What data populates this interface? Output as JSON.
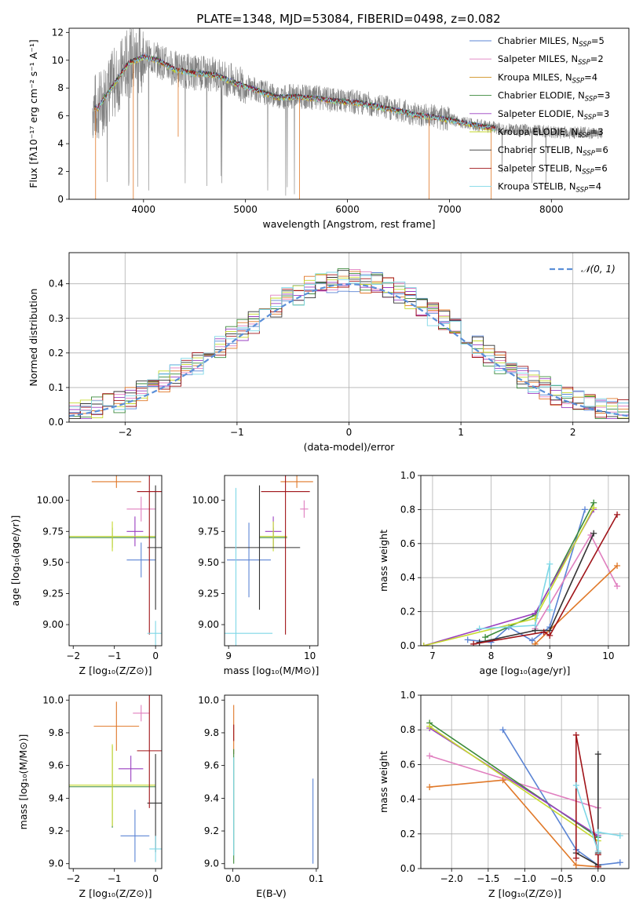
{
  "figure": {
    "title": "PLATE=1348, MJD=53084, FIBERID=0498, z=0.082"
  },
  "chart_data": [
    {
      "id": "spectrum",
      "type": "line",
      "xlabel": "wavelength [Angstrom, rest frame]",
      "ylabel": "Flux [fλ10⁻¹⁷ erg cm⁻² s⁻¹ A⁻¹]",
      "xlim": [
        3270,
        8760
      ],
      "ylim": [
        0,
        12.3
      ],
      "xticks": [
        4000,
        5000,
        6000,
        7000,
        8000
      ],
      "yticks": [
        0,
        2,
        4,
        6,
        8,
        10,
        12
      ],
      "legend_position": "top-right",
      "data_color": "#808080",
      "data": {
        "x": [
          3550,
          3700,
          3850,
          4000,
          4150,
          4300,
          4500,
          4700,
          4900,
          5100,
          5300,
          5500,
          5700,
          5900,
          6100,
          6300,
          6500,
          6700,
          6900,
          7100,
          7300,
          7500,
          7700,
          7900,
          8100,
          8300,
          8500
        ],
        "y": [
          6.6,
          8.2,
          9.8,
          10.3,
          10.0,
          9.4,
          9.1,
          9.0,
          8.4,
          7.9,
          7.4,
          7.4,
          7.3,
          7.1,
          7.0,
          6.7,
          6.4,
          6.1,
          5.9,
          5.6,
          5.3,
          5.1,
          5.0,
          4.9,
          4.8,
          4.8,
          4.7
        ]
      },
      "series": [
        {
          "name": "Chabrier MILES, N",
          "sub": "SSP",
          "suffix": "=5",
          "color": "#5b84d4"
        },
        {
          "name": "Salpeter MILES, N",
          "sub": "SSP",
          "suffix": "=2",
          "color": "#e07fbf"
        },
        {
          "name": "Kroupa MILES, N",
          "sub": "SSP",
          "suffix": "=4",
          "color": "#d1901f"
        },
        {
          "name": "Chabrier ELODIE, N",
          "sub": "SSP",
          "suffix": "=3",
          "color": "#3b8a3b"
        },
        {
          "name": "Salpeter ELODIE, N",
          "sub": "SSP",
          "suffix": "=3",
          "color": "#9a3fc0"
        },
        {
          "name": "Kroupa ELODIE, N",
          "sub": "SSP",
          "suffix": "=3",
          "color": "#c6d92e"
        },
        {
          "name": "Chabrier STELIB, N",
          "sub": "SSP",
          "suffix": "=6",
          "color": "#333333"
        },
        {
          "name": "Salpeter STELIB, N",
          "sub": "SSP",
          "suffix": "=6",
          "color": "#a01419"
        },
        {
          "name": "Kroupa STELIB, N",
          "sub": "SSP",
          "suffix": "=4",
          "color": "#7fd7e6"
        }
      ]
    },
    {
      "id": "residuals",
      "type": "histogram",
      "xlabel": "(data-model)/error",
      "ylabel": "Normed distribution",
      "xlim": [
        -2.5,
        2.5
      ],
      "ylim": [
        0,
        0.49
      ],
      "xticks": [
        -2,
        -1,
        0,
        1,
        2
      ],
      "yticks": [
        0.0,
        0.1,
        0.2,
        0.3,
        0.4
      ],
      "grid": true,
      "legend": "𝒩(0, 1)",
      "legend_position": "top-right",
      "gaussian_color": "#5b8fd8",
      "bin_width": 0.1,
      "bins_start": -2.5,
      "hist_colors": [
        "#5b84d4",
        "#e07fbf",
        "#e07828",
        "#3b8a3b",
        "#9a3fc0",
        "#c6d92e",
        "#333333",
        "#a01419",
        "#7fd7e6"
      ]
    },
    {
      "id": "age_vs_Z",
      "type": "errorbar",
      "xlabel": "Z [log₁₀(Z/Z⊙)]",
      "ylabel": "age  [log₁₀(age/yr)]",
      "xlim": [
        -2.1,
        0.15
      ],
      "ylim": [
        8.83,
        10.2
      ],
      "xticks": [
        -2,
        -1,
        0
      ],
      "yticks": [
        9.0,
        9.25,
        9.5,
        9.75,
        10.0
      ],
      "points": [
        {
          "x": -0.35,
          "xerr": 0.35,
          "y": 9.52,
          "yerr": 0.14,
          "color": "#5b84d4"
        },
        {
          "x": -0.35,
          "xerr": 0.35,
          "y": 9.93,
          "yerr": 0.1,
          "color": "#e07fbf"
        },
        {
          "x": -0.95,
          "xerr": 0.6,
          "y": 10.15,
          "yerr": 0.05,
          "color": "#e07828"
        },
        {
          "x": -1.05,
          "xerr": 1.05,
          "y": 9.7,
          "yerr": 0.08,
          "color": "#3b8a3b"
        },
        {
          "x": -0.5,
          "xerr": 0.2,
          "y": 9.75,
          "yerr": 0.12,
          "color": "#9a3fc0"
        },
        {
          "x": -1.05,
          "xerr": 1.05,
          "y": 9.71,
          "yerr": 0.12,
          "color": "#c6d92e"
        },
        {
          "x": 0.0,
          "xerr": 0.2,
          "y": 9.62,
          "yerr": 0.5,
          "color": "#333333"
        },
        {
          "x": -0.15,
          "xerr": 0.3,
          "y": 10.07,
          "yerr": 1.15,
          "color": "#a01419"
        },
        {
          "x": 0.0,
          "xerr": 0.2,
          "y": 8.93,
          "yerr": 0.1,
          "color": "#7fd7e6"
        }
      ]
    },
    {
      "id": "age_vs_mass",
      "type": "errorbar",
      "xlabel": "mass [log₁₀(M/M⊙)]",
      "ylabel": "",
      "xlim": [
        8.95,
        10.1
      ],
      "ylim": [
        8.83,
        10.2
      ],
      "xticks": [
        9,
        10
      ],
      "yticks": [
        9.0,
        9.25,
        9.5,
        9.75,
        10.0
      ],
      "points": [
        {
          "x": 9.25,
          "xerr": 0.27,
          "y": 9.52,
          "yerr": 0.3,
          "color": "#5b84d4"
        },
        {
          "x": 9.93,
          "xerr": 0.05,
          "y": 9.93,
          "yerr": 0.07,
          "color": "#e07fbf"
        },
        {
          "x": 9.84,
          "xerr": 0.2,
          "y": 10.15,
          "yerr": 0.05,
          "color": "#e07828"
        },
        {
          "x": 9.55,
          "xerr": 0.17,
          "y": 9.7,
          "yerr": 0.08,
          "color": "#3b8a3b"
        },
        {
          "x": 9.55,
          "xerr": 0.1,
          "y": 9.75,
          "yerr": 0.12,
          "color": "#9a3fc0"
        },
        {
          "x": 9.55,
          "xerr": 0.17,
          "y": 9.71,
          "yerr": 0.12,
          "color": "#c6d92e"
        },
        {
          "x": 9.38,
          "xerr": 0.5,
          "y": 9.62,
          "yerr": 0.5,
          "color": "#333333"
        },
        {
          "x": 9.7,
          "xerr": 0.3,
          "y": 10.07,
          "yerr": 1.15,
          "color": "#a01419"
        },
        {
          "x": 9.09,
          "xerr": 0.45,
          "y": 8.93,
          "yerr": 1.17,
          "color": "#7fd7e6"
        }
      ]
    },
    {
      "id": "weight_vs_age",
      "type": "line",
      "xlabel": "age  [log₁₀(age/yr)]",
      "ylabel": "mass weight",
      "xlim": [
        6.8,
        10.35
      ],
      "ylim": [
        0,
        1.0
      ],
      "xticks": [
        7,
        8,
        9,
        10
      ],
      "yticks": [
        0.0,
        0.2,
        0.4,
        0.6,
        0.8,
        1.0
      ],
      "grid": true,
      "series": [
        {
          "color": "#5b84d4",
          "x": [
            7.6,
            8.0,
            8.3,
            8.7,
            9.0,
            9.6
          ],
          "y": [
            0.035,
            0.02,
            0.11,
            0.03,
            0.11,
            0.8
          ]
        },
        {
          "color": "#e07fbf",
          "x": [
            8.75,
            9.7,
            10.15
          ],
          "y": [
            0.1,
            0.65,
            0.35
          ]
        },
        {
          "color": "#e07828",
          "x": [
            8.75,
            10.15
          ],
          "y": [
            0.01,
            0.47
          ]
        },
        {
          "color": "#3b8a3b",
          "x": [
            7.9,
            8.75,
            9.75
          ],
          "y": [
            0.05,
            0.18,
            0.84
          ]
        },
        {
          "color": "#9a3fc0",
          "x": [
            6.85,
            8.75,
            9.75
          ],
          "y": [
            0.0,
            0.19,
            0.8
          ]
        },
        {
          "color": "#c6d92e",
          "x": [
            6.85,
            8.75,
            9.75
          ],
          "y": [
            0.0,
            0.16,
            0.81
          ]
        },
        {
          "color": "#333333",
          "x": [
            7.8,
            8.75,
            9.0,
            9.75
          ],
          "y": [
            0.02,
            0.09,
            0.09,
            0.66
          ]
        },
        {
          "color": "#a01419",
          "x": [
            7.7,
            8.9,
            9.0,
            10.15
          ],
          "y": [
            0.01,
            0.08,
            0.06,
            0.77
          ]
        },
        {
          "color": "#7fd7e6",
          "x": [
            7.8,
            8.75,
            9.0,
            9.0
          ],
          "y": [
            0.1,
            0.12,
            0.48,
            0.21
          ]
        }
      ]
    },
    {
      "id": "mass_vs_Z",
      "type": "errorbar",
      "xlabel": "Z [log₁₀(Z/Z⊙)]",
      "ylabel": "mass [log₁₀(M/M⊙)]",
      "xlim": [
        -2.1,
        0.15
      ],
      "ylim": [
        8.97,
        10.03
      ],
      "xticks": [
        -2,
        -1,
        0
      ],
      "yticks": [
        9.0,
        9.2,
        9.4,
        9.6,
        9.8,
        10.0
      ],
      "points": [
        {
          "x": -0.5,
          "xerr": 0.35,
          "y": 9.17,
          "yerr": 0.16,
          "color": "#5b84d4"
        },
        {
          "x": -0.35,
          "xerr": 0.2,
          "y": 9.92,
          "yerr": 0.05,
          "color": "#e07fbf"
        },
        {
          "x": -0.95,
          "xerr": 0.55,
          "y": 9.84,
          "yerr": 0.15,
          "color": "#e07828"
        },
        {
          "x": -1.05,
          "xerr": 1.05,
          "y": 9.47,
          "yerr": 0.25,
          "color": "#3b8a3b"
        },
        {
          "x": -0.6,
          "xerr": 0.3,
          "y": 9.58,
          "yerr": 0.08,
          "color": "#9a3fc0"
        },
        {
          "x": -1.05,
          "xerr": 1.05,
          "y": 9.48,
          "yerr": 0.25,
          "color": "#c6d92e"
        },
        {
          "x": 0.0,
          "xerr": 0.2,
          "y": 9.37,
          "yerr": 0.3,
          "color": "#333333"
        },
        {
          "x": -0.15,
          "xerr": 0.3,
          "y": 9.69,
          "yerr": 0.35,
          "color": "#a01419"
        },
        {
          "x": 0.0,
          "xerr": 0.15,
          "y": 9.09,
          "yerr": 0.08,
          "color": "#7fd7e6"
        }
      ]
    },
    {
      "id": "mass_vs_ebv",
      "type": "errorbar",
      "xlabel": "E(B-V)",
      "ylabel": "",
      "xlim": [
        -0.01,
        0.102
      ],
      "ylim": [
        8.97,
        10.03
      ],
      "xticks": [
        0.0,
        0.1
      ],
      "yticks": [
        9.0,
        9.2,
        9.4,
        9.6,
        9.8,
        10.0
      ],
      "points": [
        {
          "x": 0.096,
          "xerr": 0.0,
          "y": 9.26,
          "yerr": 0.26,
          "color": "#5b84d4"
        },
        {
          "x": 0.001,
          "xerr": 0.0,
          "y": 9.82,
          "yerr": 0.15,
          "color": "#e07828"
        },
        {
          "x": 0.001,
          "xerr": 0.0,
          "y": 9.35,
          "yerr": 0.35,
          "color": "#3b8a3b"
        },
        {
          "x": 0.001,
          "xerr": 0.0,
          "y": 9.8,
          "yerr": 0.05,
          "color": "#a01419"
        },
        {
          "x": 0.001,
          "xerr": 0.0,
          "y": 9.35,
          "yerr": 0.3,
          "color": "#7fd7e6"
        }
      ]
    },
    {
      "id": "weight_vs_Z",
      "type": "line",
      "xlabel": "Z [log₁₀(Z/Z⊙)]",
      "ylabel": "mass weight",
      "xlim": [
        -2.42,
        0.42
      ],
      "ylim": [
        0,
        1.0
      ],
      "xticks": [
        -2.0,
        -1.5,
        -1.0,
        -0.5,
        0.0
      ],
      "yticks": [
        0.0,
        0.2,
        0.4,
        0.6,
        0.8,
        1.0
      ],
      "grid": true,
      "series": [
        {
          "color": "#5b84d4",
          "x": [
            -1.3,
            -0.3,
            0.0,
            0.3
          ],
          "y": [
            0.8,
            0.11,
            0.02,
            0.035
          ]
        },
        {
          "color": "#e07fbf",
          "x": [
            -2.3,
            0.0
          ],
          "y": [
            0.65,
            0.35
          ]
        },
        {
          "color": "#e07828",
          "x": [
            -2.3,
            -1.3,
            -0.3,
            0.0
          ],
          "y": [
            0.47,
            0.51,
            0.02,
            0.01
          ]
        },
        {
          "color": "#3b8a3b",
          "x": [
            -2.3,
            0.0
          ],
          "y": [
            0.84,
            0.18
          ]
        },
        {
          "color": "#9a3fc0",
          "x": [
            -2.3,
            0.0
          ],
          "y": [
            0.81,
            0.19
          ]
        },
        {
          "color": "#c6d92e",
          "x": [
            -2.3,
            0.0
          ],
          "y": [
            0.82,
            0.16
          ]
        },
        {
          "color": "#333333",
          "x": [
            -0.3,
            0.0,
            0.0,
            0.0
          ],
          "y": [
            0.09,
            0.02,
            0.66,
            0.09
          ]
        },
        {
          "color": "#a01419",
          "x": [
            -0.3,
            -0.3,
            0.0,
            0.0
          ],
          "y": [
            0.06,
            0.77,
            0.08,
            0.01
          ]
        },
        {
          "color": "#7fd7e6",
          "x": [
            -0.3,
            0.0,
            0.0,
            0.3
          ],
          "y": [
            0.48,
            0.1,
            0.21,
            0.19
          ]
        }
      ]
    }
  ]
}
